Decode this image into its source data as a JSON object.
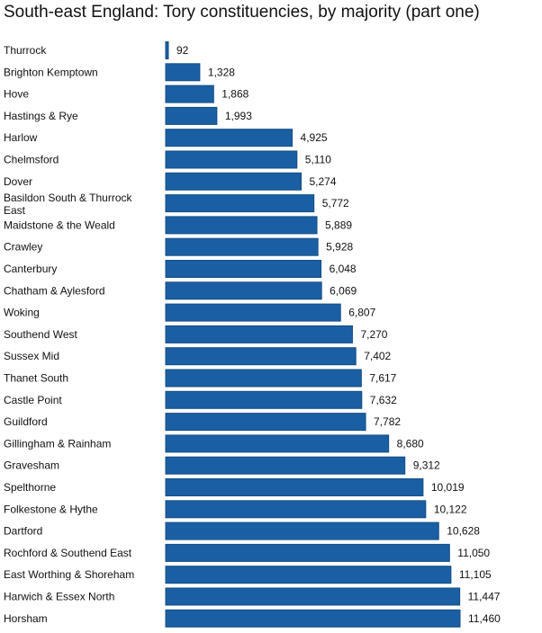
{
  "chart_data": {
    "type": "bar",
    "orientation": "horizontal",
    "title": "South-east England: Tory constituencies, by majority (part one)",
    "xlabel": "",
    "ylabel": "",
    "grid": false,
    "bar_color": "#1a5fa3",
    "bar_border_color": "#154d86",
    "categories": [
      "Thurrock",
      "Brighton Kemptown",
      "Hove",
      "Hastings & Rye",
      "Harlow",
      "Chelmsford",
      "Dover",
      "Basildon South & Thurrock East",
      "Maidstone & the Weald",
      "Crawley",
      "Canterbury",
      "Chatham & Aylesford",
      "Woking",
      "Southend West",
      "Sussex Mid",
      "Thanet South",
      "Castle Point",
      "Guildford",
      "Gillingham & Rainham",
      "Gravesham",
      "Spelthorne",
      "Folkestone & Hythe",
      "Dartford",
      "Rochford & Southend East",
      "East Worthing & Shoreham",
      "Harwich & Essex North",
      "Horsham"
    ],
    "values": [
      92,
      1328,
      1868,
      1993,
      4925,
      5110,
      5274,
      5772,
      5889,
      5928,
      6048,
      6069,
      6807,
      7270,
      7402,
      7617,
      7632,
      7782,
      8680,
      9312,
      10019,
      10122,
      10628,
      11050,
      11105,
      11447,
      11460
    ],
    "value_labels": [
      "92",
      "1,328",
      "1,868",
      "1,993",
      "4,925",
      "5,110",
      "5,274",
      "5,772",
      "5,889",
      "5,928",
      "6,048",
      "6,069",
      "6,807",
      "7,270",
      "7,402",
      "7,617",
      "7,632",
      "7,782",
      "8,680",
      "9,312",
      "10,019",
      "10,122",
      "10,628",
      "11,050",
      "11,105",
      "11,447",
      "11,460"
    ]
  }
}
